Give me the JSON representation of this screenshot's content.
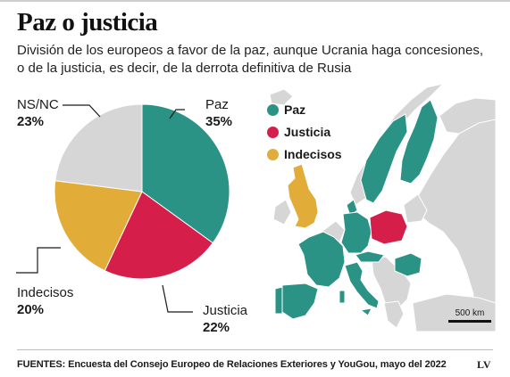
{
  "title": "Paz o justicia",
  "subtitle_line1": "División de los europeos a favor de la paz, aunque Ucrania haga concesiones,",
  "subtitle_line2": "o de la justicia, es decir, de la derrota definitiva de Rusia",
  "colors": {
    "paz": "#2a9385",
    "justicia": "#d51e49",
    "indecisos": "#e2ac39",
    "nsnc": "#d6d6d6",
    "land": "#d8d8d8",
    "sea": "#ffffff"
  },
  "chart_data": {
    "type": "pie",
    "slices": [
      {
        "name": "Paz",
        "value": 35,
        "value_label": "35%",
        "color": "#2a9385"
      },
      {
        "name": "Justicia",
        "value": 22,
        "value_label": "22%",
        "color": "#d51e49"
      },
      {
        "name": "Indecisos",
        "value": 20,
        "value_label": "20%",
        "color": "#e2ac39"
      },
      {
        "name": "NS/NC",
        "value": 23,
        "value_label": "23%",
        "color": "#d6d6d6"
      }
    ]
  },
  "legend": [
    {
      "label": "Paz",
      "color": "#2a9385"
    },
    {
      "label": "Justicia",
      "color": "#d51e49"
    },
    {
      "label": "Indecisos",
      "color": "#e2ac39"
    }
  ],
  "map": {
    "scale_label": "500 km",
    "countries": [
      {
        "name": "Reino Unido",
        "group": "indecisos"
      },
      {
        "name": "Francia",
        "group": "paz"
      },
      {
        "name": "España",
        "group": "paz"
      },
      {
        "name": "Portugal",
        "group": "paz"
      },
      {
        "name": "Italia",
        "group": "paz"
      },
      {
        "name": "Alemania",
        "group": "paz"
      },
      {
        "name": "Austria",
        "group": "paz"
      },
      {
        "name": "Rumanía",
        "group": "paz"
      },
      {
        "name": "Suecia",
        "group": "paz"
      },
      {
        "name": "Finlandia",
        "group": "paz"
      },
      {
        "name": "Dinamarca",
        "group": "paz"
      },
      {
        "name": "Polonia",
        "group": "justicia"
      }
    ]
  },
  "footer": {
    "label": "FUENTES:",
    "text": "Encuesta del Consejo Europeo de Relaciones Exteriores y YouGou, mayo del 2022",
    "brand": "LV"
  }
}
